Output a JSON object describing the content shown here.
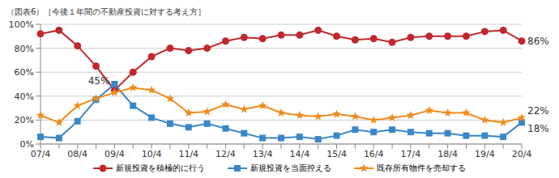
{
  "chart_data": {
    "type": "line",
    "title": "（図表6）［今後１年間の不動産投資に対する考え方］",
    "categories": [
      "07/4",
      null,
      "08/4",
      null,
      "09/4",
      null,
      "10/4",
      null,
      "11/4",
      null,
      "12/4",
      null,
      "13/4",
      null,
      "14/4",
      null,
      "15/4",
      null,
      "16/4",
      null,
      "17/4",
      null,
      "18/4",
      null,
      "19/4",
      null,
      "20/4"
    ],
    "series": [
      {
        "name": "新規投資を積極的に行う",
        "color": "#c0282d",
        "marker": "circle",
        "values": [
          92,
          95,
          82,
          65,
          45,
          60,
          73,
          80,
          78,
          80,
          86,
          89,
          88,
          91,
          91,
          95,
          90,
          87,
          88,
          85,
          89,
          90,
          90,
          90,
          94,
          95,
          86
        ],
        "value_labels": [
          null,
          null,
          null,
          null,
          "45%",
          null,
          null,
          null,
          null,
          null,
          null,
          null,
          null,
          null,
          null,
          null,
          null,
          null,
          null,
          null,
          null,
          null,
          null,
          null,
          null,
          null,
          "86%"
        ]
      },
      {
        "name": "新規投資を当面控える",
        "color": "#3a87c8",
        "marker": "square",
        "values": [
          6,
          5,
          19,
          37,
          50,
          32,
          22,
          17,
          14,
          17,
          13,
          9,
          5,
          5,
          6,
          4,
          7,
          12,
          10,
          12,
          10,
          9,
          9,
          7,
          7,
          6,
          18
        ],
        "value_labels": [
          null,
          null,
          null,
          null,
          null,
          null,
          null,
          null,
          null,
          null,
          null,
          null,
          null,
          null,
          null,
          null,
          null,
          null,
          null,
          null,
          null,
          null,
          null,
          null,
          null,
          null,
          "18%"
        ]
      },
      {
        "name": "既存所有物件を売却する",
        "color": "#f08c1e",
        "marker": "star",
        "values": [
          24,
          18,
          32,
          38,
          43,
          47,
          45,
          38,
          26,
          27,
          33,
          29,
          32,
          26,
          24,
          23,
          25,
          23,
          20,
          22,
          24,
          28,
          26,
          26,
          20,
          18,
          22
        ],
        "value_labels": [
          null,
          null,
          null,
          null,
          null,
          null,
          null,
          null,
          null,
          null,
          null,
          null,
          null,
          null,
          null,
          null,
          null,
          null,
          null,
          null,
          null,
          null,
          null,
          null,
          null,
          null,
          "22%"
        ]
      }
    ],
    "ylim": [
      0,
      100
    ],
    "yticks": [
      {
        "value": 0,
        "label": "0%"
      },
      {
        "value": 20,
        "label": "20%"
      },
      {
        "value": 40,
        "label": "40%"
      },
      {
        "value": 60,
        "label": "60%"
      },
      {
        "value": 80,
        "label": "80%"
      },
      {
        "value": 100,
        "label": "100%"
      }
    ],
    "grid": true,
    "legend": "bottom"
  }
}
